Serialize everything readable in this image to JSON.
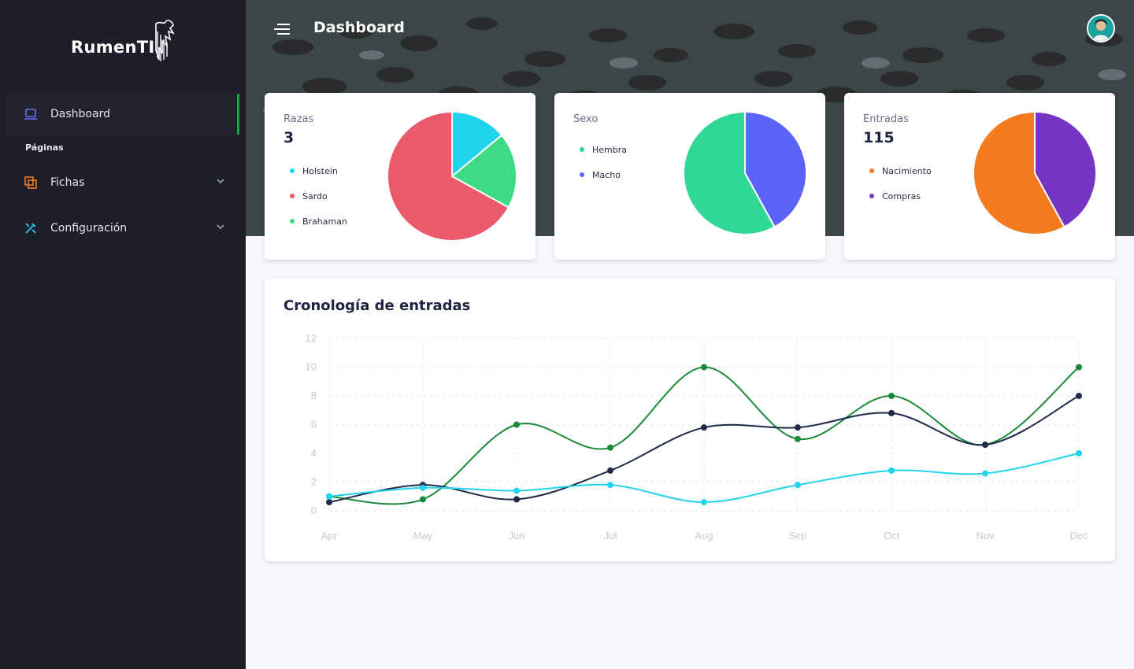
{
  "app": {
    "name": "RumenTI",
    "page_title": "Dashboard"
  },
  "sidebar": {
    "items": [
      {
        "label": "Dashboard",
        "icon": "laptop-icon",
        "active": true
      },
      {
        "label": "Fichas",
        "icon": "copy-icon",
        "active": false
      },
      {
        "label": "Configuración",
        "icon": "tools-icon",
        "active": false
      }
    ],
    "section_label": "Páginas"
  },
  "cards": [
    {
      "label": "Razas",
      "value": "3",
      "legend": [
        {
          "name": "Holstein",
          "color": "#22d3ee"
        },
        {
          "name": "Sardo",
          "color": "#ea5a6b"
        },
        {
          "name": "Brahaman",
          "color": "#3ddc84"
        }
      ],
      "slices": [
        {
          "name": "Holstein",
          "value": 14,
          "color": "#22d3ee"
        },
        {
          "name": "Brahaman",
          "value": 19,
          "color": "#3ddc84"
        },
        {
          "name": "Sardo",
          "value": 67,
          "color": "#ea5a6b"
        }
      ]
    },
    {
      "label": "Sexo",
      "value": "",
      "legend": [
        {
          "name": "Hembra",
          "color": "#2fd896"
        },
        {
          "name": "Macho",
          "color": "#5b63fb"
        }
      ],
      "slices": [
        {
          "name": "Macho",
          "value": 42,
          "color": "#5b63fb"
        },
        {
          "name": "Hembra",
          "value": 58,
          "color": "#2fd896"
        }
      ]
    },
    {
      "label": "Entradas",
      "value": "115",
      "legend": [
        {
          "name": "Nacimiento",
          "color": "#f47a1f"
        },
        {
          "name": "Compras",
          "color": "#7634c2"
        }
      ],
      "slices": [
        {
          "name": "Compras",
          "value": 42,
          "color": "#7634c2"
        },
        {
          "name": "Nacimiento",
          "value": 58,
          "color": "#f47a1f"
        }
      ]
    }
  ],
  "timeline": {
    "title": "Cronología de entradas"
  },
  "chart_data": {
    "type": "line",
    "title": "Cronología de entradas",
    "categories": [
      "Apr",
      "May",
      "Jun",
      "Jul",
      "Aug",
      "Sep",
      "Oct",
      "Nov",
      "Dec"
    ],
    "y_ticks": [
      "0",
      "2",
      "4",
      "6",
      "8",
      "10",
      "12"
    ],
    "ylim": [
      0,
      12
    ],
    "grid": true,
    "series": [
      {
        "color": "#1a8a3a",
        "values": [
          1,
          0.8,
          6,
          4.4,
          10,
          5,
          8,
          4.6,
          10
        ]
      },
      {
        "color": "#1f2a4a",
        "values": [
          0.6,
          1.8,
          0.8,
          2.8,
          5.8,
          5.8,
          6.8,
          4.6,
          8
        ]
      },
      {
        "color": "#22d3ee",
        "values": [
          1,
          1.6,
          1.4,
          1.8,
          0.6,
          1.8,
          2.8,
          2.6,
          4
        ]
      }
    ]
  }
}
